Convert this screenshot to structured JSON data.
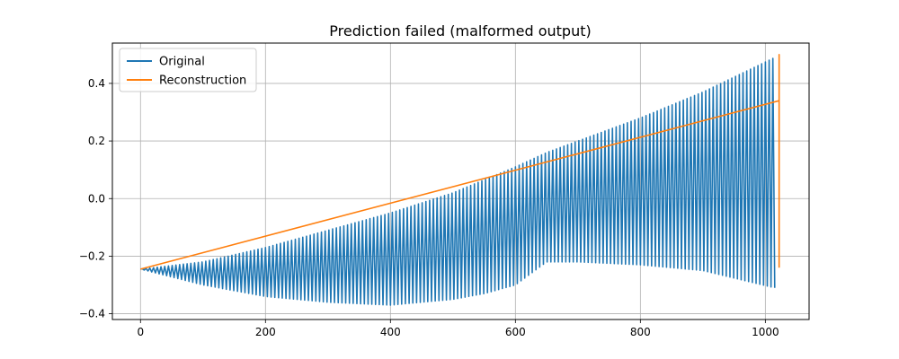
{
  "chart_data": {
    "type": "line",
    "title": "Prediction failed (malformed output)",
    "xlabel": "",
    "ylabel": "",
    "xlim": [
      -45,
      1070
    ],
    "ylim": [
      -0.42,
      0.54
    ],
    "x_ticks": [
      0,
      200,
      400,
      600,
      800,
      1000
    ],
    "y_ticks": [
      -0.4,
      -0.2,
      0.0,
      0.2,
      0.4
    ],
    "x_tick_labels": [
      "0",
      "200",
      "400",
      "600",
      "800",
      "1000"
    ],
    "y_tick_labels": [
      "−0.4",
      "−0.2",
      "0.0",
      "0.2",
      "0.4"
    ],
    "grid": true,
    "legend_position": "upper-left",
    "series": [
      {
        "name": "Original",
        "color": "#1f77b4",
        "style": "oscillation",
        "x_range": [
          0,
          1015
        ],
        "cycles": 170,
        "upper_envelope": [
          [
            0,
            -0.245
          ],
          [
            100,
            -0.22
          ],
          [
            200,
            -0.17
          ],
          [
            300,
            -0.11
          ],
          [
            400,
            -0.05
          ],
          [
            500,
            0.02
          ],
          [
            600,
            0.11
          ],
          [
            650,
            0.16
          ],
          [
            700,
            0.2
          ],
          [
            800,
            0.28
          ],
          [
            900,
            0.37
          ],
          [
            1015,
            0.49
          ]
        ],
        "lower_envelope": [
          [
            0,
            -0.245
          ],
          [
            100,
            -0.3
          ],
          [
            200,
            -0.34
          ],
          [
            300,
            -0.36
          ],
          [
            400,
            -0.37
          ],
          [
            500,
            -0.35
          ],
          [
            550,
            -0.33
          ],
          [
            600,
            -0.3
          ],
          [
            650,
            -0.22
          ],
          [
            700,
            -0.22
          ],
          [
            800,
            -0.23
          ],
          [
            900,
            -0.25
          ],
          [
            1015,
            -0.31
          ]
        ]
      },
      {
        "name": "Reconstruction",
        "color": "#ff7f0e",
        "style": "polyline",
        "points": [
          [
            0,
            -0.245
          ],
          [
            1022,
            0.34
          ],
          [
            1022,
            0.5
          ],
          [
            1022,
            -0.24
          ]
        ]
      }
    ]
  }
}
